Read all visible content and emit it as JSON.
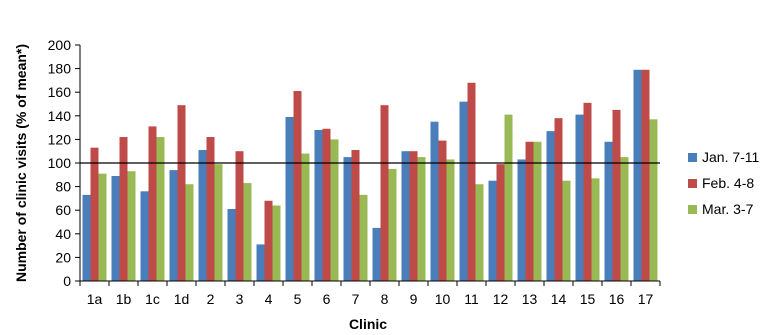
{
  "chart_data": {
    "type": "bar",
    "title": "",
    "xlabel": "Clinic",
    "ylabel": "Number of clinic visits (% of mean*)",
    "ylim": [
      0,
      200
    ],
    "yticks": [
      0,
      20,
      40,
      60,
      80,
      100,
      120,
      140,
      160,
      180,
      200
    ],
    "grid": false,
    "reference_line": 100,
    "legend_position": "right",
    "categories": [
      "1a",
      "1b",
      "1c",
      "1d",
      "2",
      "3",
      "4",
      "5",
      "6",
      "7",
      "8",
      "9",
      "10",
      "11",
      "12",
      "13",
      "14",
      "15",
      "16",
      "17"
    ],
    "series": [
      {
        "name": "Jan. 7-11",
        "color": "#4a7ebb",
        "values": [
          73,
          89,
          76,
          94,
          111,
          61,
          31,
          139,
          128,
          105,
          45,
          110,
          135,
          152,
          85,
          103,
          127,
          141,
          118,
          179
        ]
      },
      {
        "name": "Feb. 4-8",
        "color": "#be4b48",
        "values": [
          113,
          122,
          131,
          149,
          122,
          110,
          68,
          161,
          129,
          111,
          149,
          110,
          119,
          168,
          99,
          118,
          138,
          151,
          145,
          179
        ]
      },
      {
        "name": "Mar. 3-7",
        "color": "#98b954",
        "values": [
          91,
          93,
          122,
          82,
          99,
          83,
          64,
          108,
          120,
          73,
          95,
          105,
          103,
          82,
          141,
          118,
          85,
          87,
          105,
          137
        ]
      }
    ]
  }
}
